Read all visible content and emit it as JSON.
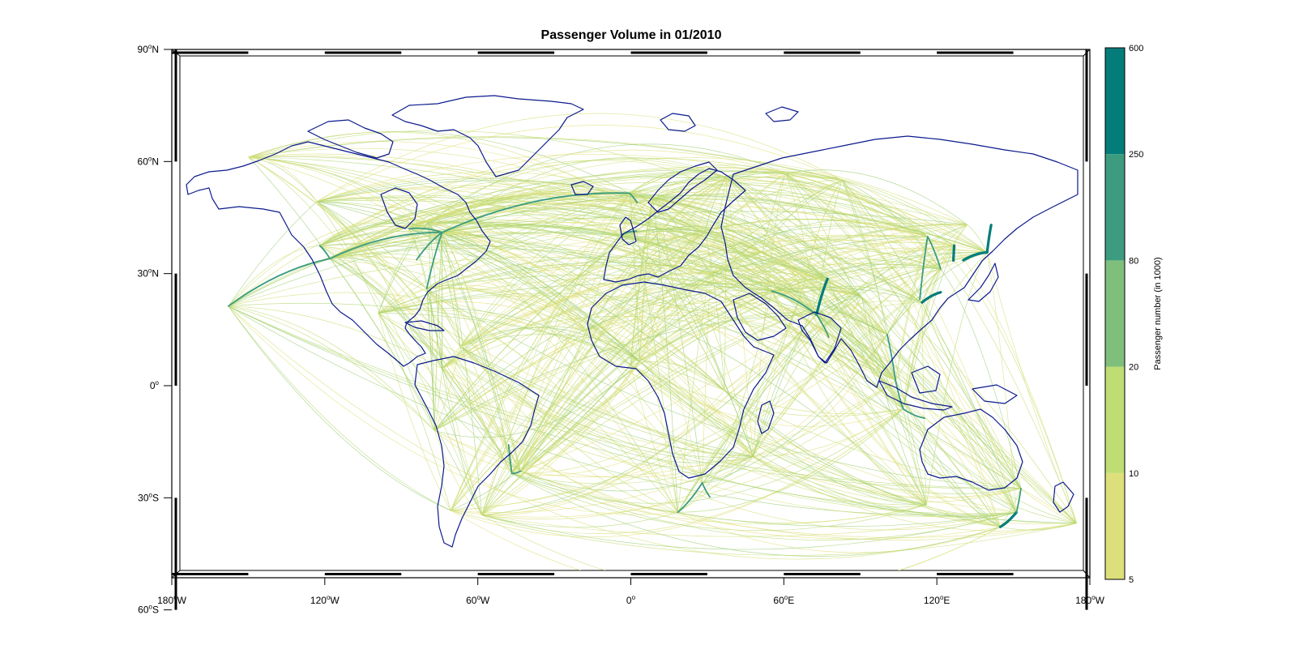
{
  "title": "Passenger Volume in 01/2010",
  "lat_labels": [
    {
      "deg": "90",
      "hemi": "N",
      "lat": 90
    },
    {
      "deg": "60",
      "hemi": "N",
      "lat": 60
    },
    {
      "deg": "30",
      "hemi": "N",
      "lat": 30
    },
    {
      "deg": "0",
      "hemi": "",
      "lat": 0
    },
    {
      "deg": "30",
      "hemi": "S",
      "lat": -30
    },
    {
      "deg": "60",
      "hemi": "S",
      "lat": -60
    }
  ],
  "lon_labels": [
    {
      "deg": "180",
      "hemi": "W",
      "lon": -180
    },
    {
      "deg": "120",
      "hemi": "W",
      "lon": -120
    },
    {
      "deg": "60",
      "hemi": "W",
      "lon": -60
    },
    {
      "deg": "0",
      "hemi": "",
      "lon": 0
    },
    {
      "deg": "60",
      "hemi": "E",
      "lon": 60
    },
    {
      "deg": "120",
      "hemi": "E",
      "lon": 120
    },
    {
      "deg": "180",
      "hemi": "W",
      "lon": 180
    }
  ],
  "colorbar": {
    "title": "Passenger number (in 1000)",
    "tick_labels": [
      "600",
      "250",
      "80",
      "20",
      "10",
      "5"
    ],
    "bins": [
      {
        "from": 5,
        "to": 10,
        "color": "#dde07a"
      },
      {
        "from": 10,
        "to": 20,
        "color": "#bedd72"
      },
      {
        "from": 20,
        "to": 80,
        "color": "#7fbf7b"
      },
      {
        "from": 80,
        "to": 250,
        "color": "#3d9c7f"
      },
      {
        "from": 250,
        "to": 600,
        "color": "#047d7a"
      }
    ]
  },
  "colors": {
    "coastline": "#0b1a8c",
    "frame": "#000000"
  },
  "map": {
    "projection": "equirectangular",
    "lon_range": [
      -180,
      180
    ],
    "lat_range": [
      -65,
      90
    ],
    "major_routes": [
      {
        "from": [
          -74,
          41
        ],
        "to": [
          -0.5,
          51.5
        ],
        "volume": 80
      },
      {
        "from": [
          -118,
          34
        ],
        "to": [
          -74,
          41
        ],
        "volume": 80
      },
      {
        "from": [
          -87,
          42
        ],
        "to": [
          -74,
          41
        ],
        "volume": 80
      },
      {
        "from": [
          -122,
          37.5
        ],
        "to": [
          -118,
          34
        ],
        "volume": 80
      },
      {
        "from": [
          -80,
          26
        ],
        "to": [
          -74,
          41
        ],
        "volume": 80
      },
      {
        "from": [
          -84,
          33.7
        ],
        "to": [
          -74,
          41
        ],
        "volume": 80
      },
      {
        "from": [
          -118,
          34
        ],
        "to": [
          -157.8,
          21.3
        ],
        "volume": 80
      },
      {
        "from": [
          -46.6,
          -23.5
        ],
        "to": [
          -43.2,
          -22.9
        ],
        "volume": 80
      },
      {
        "from": [
          -46.6,
          -23.5
        ],
        "to": [
          -47.9,
          -15.8
        ],
        "volume": 80
      },
      {
        "from": [
          28,
          -26
        ],
        "to": [
          18.4,
          -33.9
        ],
        "volume": 80
      },
      {
        "from": [
          28,
          -26
        ],
        "to": [
          31,
          -29.8
        ],
        "volume": 80
      },
      {
        "from": [
          72.8,
          19
        ],
        "to": [
          77.1,
          28.6
        ],
        "volume": 250
      },
      {
        "from": [
          72.8,
          19
        ],
        "to": [
          77.6,
          13
        ],
        "volume": 80
      },
      {
        "from": [
          121.5,
          31.2
        ],
        "to": [
          116.4,
          39.9
        ],
        "volume": 80
      },
      {
        "from": [
          113.3,
          23.1
        ],
        "to": [
          116.4,
          39.9
        ],
        "volume": 80
      },
      {
        "from": [
          121.5,
          25
        ],
        "to": [
          114.2,
          22.3
        ],
        "volume": 250
      },
      {
        "from": [
          139.7,
          35.7
        ],
        "to": [
          141.3,
          43
        ],
        "volume": 600
      },
      {
        "from": [
          139.7,
          35.7
        ],
        "to": [
          130.4,
          33.6
        ],
        "volume": 600
      },
      {
        "from": [
          126.5,
          33.5
        ],
        "to": [
          126.8,
          37.5
        ],
        "volume": 250
      },
      {
        "from": [
          151.2,
          -33.9
        ],
        "to": [
          144.9,
          -37.8
        ],
        "volume": 600
      },
      {
        "from": [
          151.2,
          -33.9
        ],
        "to": [
          153,
          -27.5
        ],
        "volume": 80
      },
      {
        "from": [
          103.8,
          1.35
        ],
        "to": [
          106.8,
          -6.2
        ],
        "volume": 80
      },
      {
        "from": [
          106.8,
          -6.2
        ],
        "to": [
          115.2,
          -8.7
        ],
        "volume": 80
      },
      {
        "from": [
          -3.7,
          40.4
        ],
        "to": [
          2.2,
          41.4
        ],
        "volume": 80
      },
      {
        "from": [
          -0.5,
          51.5
        ],
        "to": [
          2.5,
          49
        ],
        "volume": 80
      },
      {
        "from": [
          55.3,
          25.3
        ],
        "to": [
          72.8,
          19
        ],
        "volume": 80
      },
      {
        "from": [
          100.5,
          13.7
        ],
        "to": [
          103.8,
          1.35
        ],
        "volume": 80
      }
    ]
  }
}
